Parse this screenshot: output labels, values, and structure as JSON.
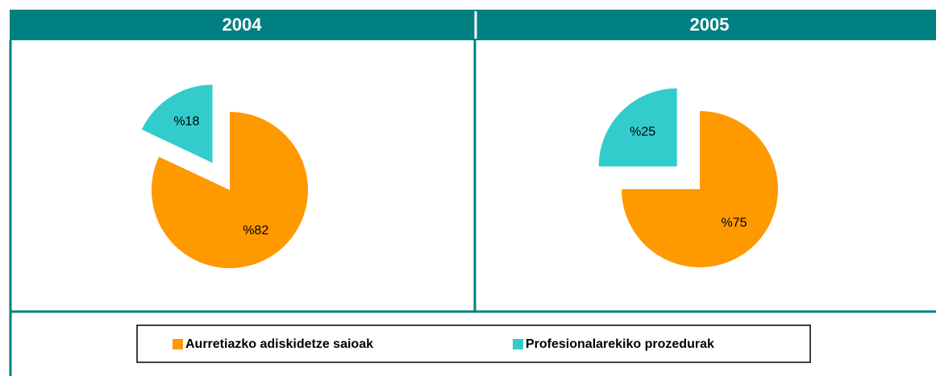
{
  "chart_data": [
    {
      "type": "pie",
      "title": "2004",
      "values": [
        82,
        18
      ],
      "value_labels": [
        "%82",
        "%18"
      ]
    },
    {
      "type": "pie",
      "title": "2005",
      "values": [
        75,
        25
      ],
      "value_labels": [
        "%75",
        "%25"
      ]
    }
  ],
  "legend": {
    "labels": [
      "Aurretiazko adiskidetze saioak",
      "Profesionalarekiko prozedurak"
    ],
    "colors": [
      "#ff9900",
      "#33cccc"
    ]
  }
}
